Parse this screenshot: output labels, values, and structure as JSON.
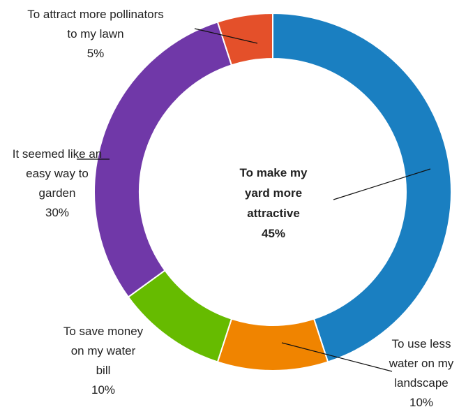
{
  "chart_data": {
    "type": "pie",
    "variant": "donut",
    "start": "12 o'clock",
    "direction": "clockwise",
    "slices": [
      {
        "label_lines": [
          "To make my",
          "yard more",
          "attractive"
        ],
        "pct_label": "45%",
        "value": 45,
        "color": "#1a7fc1",
        "bold": true
      },
      {
        "label_lines": [
          "To use less",
          "water on my",
          "landscape"
        ],
        "pct_label": "10%",
        "value": 10,
        "color": "#f08400",
        "bold": false
      },
      {
        "label_lines": [
          "To save money",
          "on my water",
          "bill"
        ],
        "pct_label": "10%",
        "value": 10,
        "color": "#66bb00",
        "bold": false
      },
      {
        "label_lines": [
          "It seemed like an",
          "easy way to",
          "garden"
        ],
        "pct_label": "30%",
        "value": 30,
        "color": "#7038a8",
        "bold": false
      },
      {
        "label_lines": [
          "To attract more pollinators",
          "to my lawn"
        ],
        "pct_label": "5%",
        "value": 5,
        "color": "#e4502a",
        "bold": false
      }
    ]
  }
}
